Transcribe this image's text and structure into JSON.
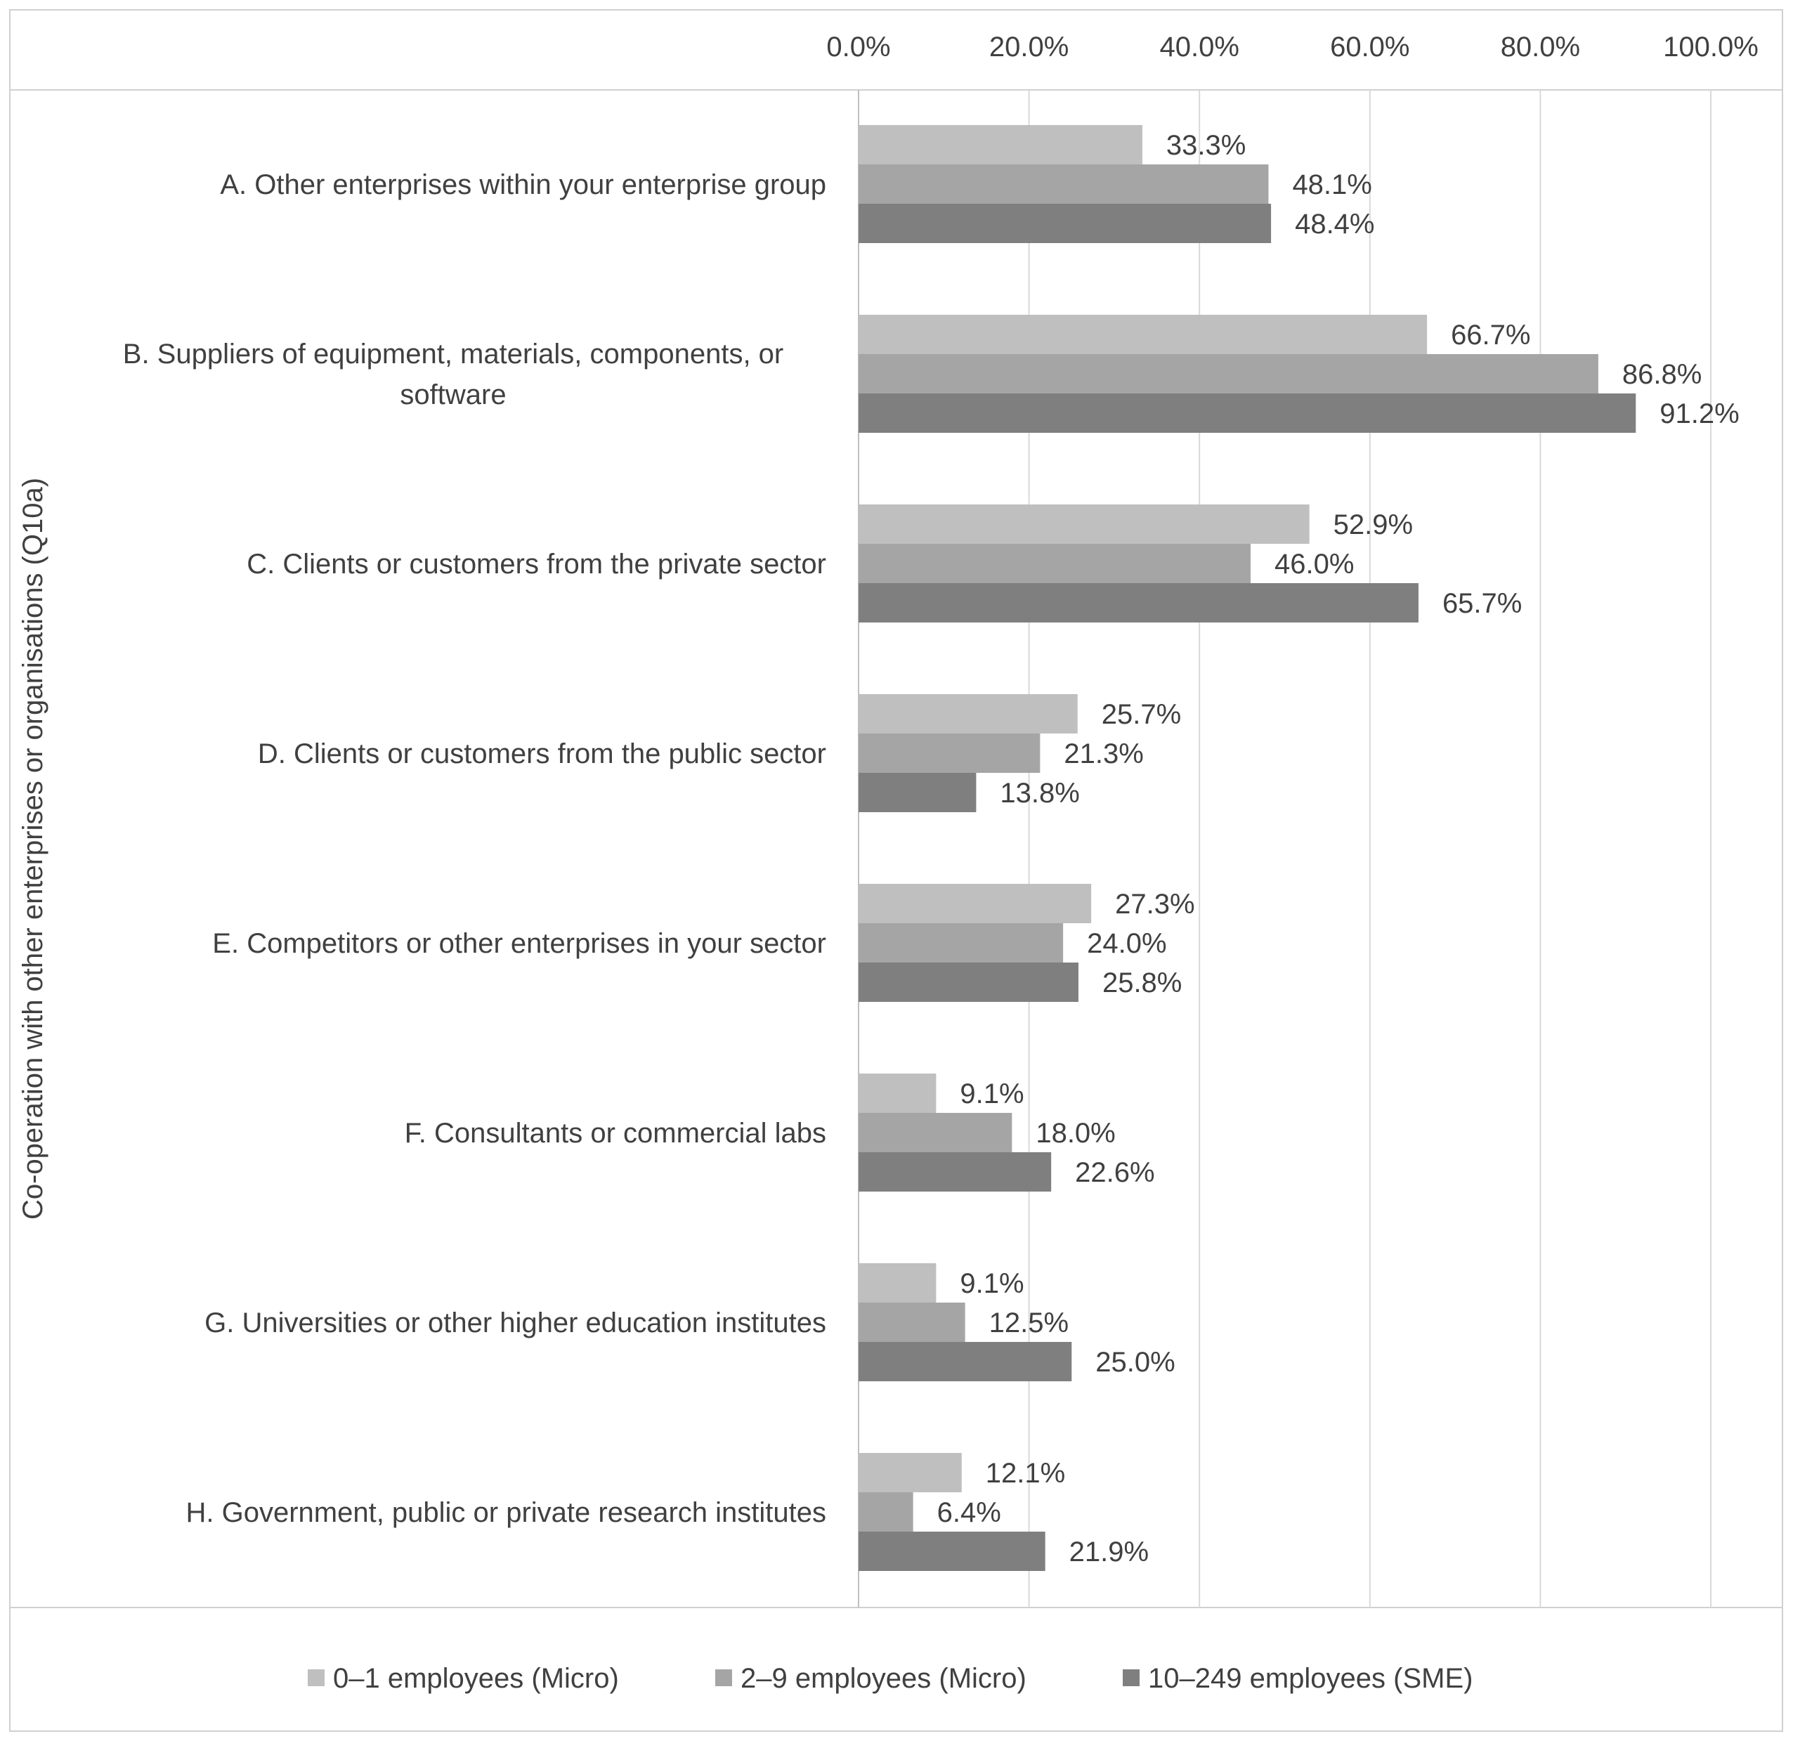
{
  "chart_data": {
    "type": "bar",
    "orientation": "horizontal",
    "ylabel": "Co-operation with other enterprises or organisations (Q10a)",
    "xlabel": "",
    "xlim": [
      0,
      100
    ],
    "ticks": [
      0,
      20,
      40,
      60,
      80,
      100
    ],
    "tick_labels": [
      "0.0%",
      "20.0%",
      "40.0%",
      "60.0%",
      "80.0%",
      "100.0%"
    ],
    "x_axis_position": "top",
    "grid": true,
    "legend_position": "bottom",
    "categories": [
      [
        "A. Other enterprises within your enterprise group"
      ],
      [
        "B. Suppliers of equipment, materials, components, or",
        "software"
      ],
      [
        "C. Clients or customers from the private sector"
      ],
      [
        "D. Clients or customers from the public sector"
      ],
      [
        "E. Competitors or other enterprises in your sector"
      ],
      [
        "F. Consultants or commercial labs"
      ],
      [
        "G. Universities or other higher education institutes"
      ],
      [
        "H. Government, public or private research institutes"
      ]
    ],
    "series": [
      {
        "name": "0–1 employees (Micro)",
        "color": "#bfbfbf",
        "values": [
          33.3,
          66.7,
          52.9,
          25.7,
          27.3,
          9.1,
          9.1,
          12.1
        ],
        "labels": [
          "33.3%",
          "66.7%",
          "52.9%",
          "25.7%",
          "27.3%",
          "9.1%",
          "9.1%",
          "12.1%"
        ]
      },
      {
        "name": "2–9 employees (Micro)",
        "color": "#a5a5a5",
        "values": [
          48.1,
          86.8,
          46.0,
          21.3,
          24.0,
          18.0,
          12.5,
          6.4
        ],
        "labels": [
          "48.1%",
          "86.8%",
          "46.0%",
          "21.3%",
          "24.0%",
          "18.0%",
          "12.5%",
          "6.4%"
        ]
      },
      {
        "name": "10–249 employees (SME)",
        "color": "#7f7f7f",
        "values": [
          48.4,
          91.2,
          65.7,
          13.8,
          25.8,
          22.6,
          25.0,
          21.9
        ],
        "labels": [
          "48.4%",
          "91.2%",
          "65.7%",
          "13.8%",
          "25.8%",
          "22.6%",
          "25.0%",
          "21.9%"
        ]
      }
    ]
  },
  "colors": {
    "grid": "#d9d9d9",
    "border": "#d0d0d0",
    "text": "#404040"
  }
}
